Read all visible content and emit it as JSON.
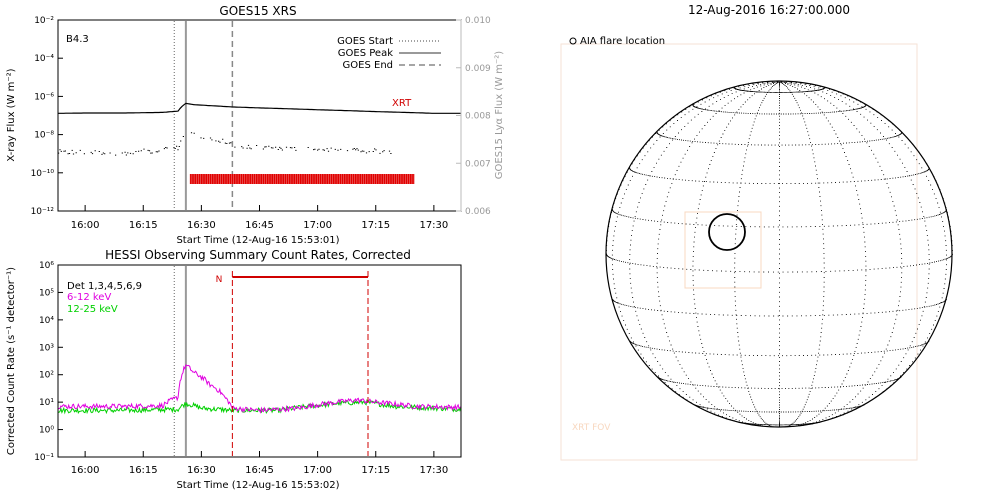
{
  "chart_data": [
    {
      "type": "line",
      "title": "GOES15 XRS",
      "xlabel": "Start Time (12-Aug-16 15:53:01)",
      "ylabel": "X-ray Flux (W m⁻²)",
      "y2label": "GOES15 Lyα Flux (W m⁻²)",
      "y_scale": "log",
      "ylim": [
        "1e-12",
        "1e-2"
      ],
      "y_ticks": [
        "10⁻¹²",
        "10⁻¹⁰",
        "10⁻⁸",
        "10⁻⁶",
        "10⁻⁴",
        "10⁻²"
      ],
      "y2_ticks": [
        "0.006",
        "0.007",
        "0.008",
        "0.009",
        "0.010"
      ],
      "x_ticks": [
        "16:00",
        "16:15",
        "16:30",
        "16:45",
        "17:00",
        "17:15",
        "17:30"
      ],
      "class_label": "B4.3",
      "xrt_label": "XRT",
      "legend": [
        {
          "label": "GOES Start",
          "style": "dotted"
        },
        {
          "label": "GOES Peak",
          "style": "solid"
        },
        {
          "label": "GOES End",
          "style": "dashed"
        }
      ],
      "goes_start": "16:23",
      "goes_peak": "16:26",
      "goes_end": "16:38",
      "series": [
        {
          "key": "long",
          "x": [
            "15:53",
            "16:00",
            "16:10",
            "16:20",
            "16:24",
            "16:26",
            "16:28",
            "16:32",
            "16:38",
            "16:45",
            "17:00",
            "17:15",
            "17:30",
            "17:37"
          ],
          "values": [
            "1.3e-7",
            "1.35e-7",
            "1.35e-7",
            "1.45e-7",
            "1.7e-7",
            "4.3e-7",
            "3.7e-7",
            "3.3e-7",
            "2.8e-7",
            "2.5e-7",
            "2.0e-7",
            "1.6e-7",
            "1.3e-7",
            "1.3e-7"
          ]
        },
        {
          "key": "short",
          "x": [
            "15:53",
            "16:00",
            "16:10",
            "16:20",
            "16:24",
            "16:26",
            "16:30",
            "16:35",
            "16:40",
            "16:45",
            "17:00",
            "17:10",
            "17:20",
            "17:37"
          ],
          "values": [
            "1.2e-9",
            "1.2e-9",
            "1.1e-9",
            "1.5e-9",
            "2e-9",
            "1.3e-8",
            "7e-9",
            "4.5e-9",
            "2.2e-9",
            "2.0e-9",
            "1.6e-9",
            "1.4e-9",
            "1.3e-9",
            "1.3e-9"
          ]
        }
      ],
      "xrt_coverage": [
        "16:27",
        "17:25"
      ]
    },
    {
      "type": "line",
      "title": "HESSI Observing Summary Count Rates, Corrected",
      "xlabel": "Start Time (12-Aug-16 15:53:02)",
      "ylabel": "Corrected Count Rate (s⁻¹ detector⁻¹)",
      "y_scale": "log",
      "ylim": [
        "1e-1",
        "1e6"
      ],
      "y_ticks": [
        "10⁻¹",
        "10⁰",
        "10¹",
        "10²",
        "10³",
        "10⁴",
        "10⁵",
        "10⁶"
      ],
      "x_ticks": [
        "16:00",
        "16:15",
        "16:30",
        "16:45",
        "17:00",
        "17:15",
        "17:30"
      ],
      "detectors_label": "Det 1,3,4,5,6,9",
      "night_label": "N",
      "night_interval": [
        "16:38",
        "17:13"
      ],
      "goes_start": "16:23",
      "goes_peak": "16:26",
      "series": [
        {
          "name": "6-12 keV",
          "color": "#e000e0",
          "x": [
            "15:53",
            "16:10",
            "16:20",
            "16:24",
            "16:25",
            "16:26",
            "16:28",
            "16:32",
            "16:36",
            "16:38",
            "16:45",
            "16:55",
            "17:05",
            "17:10",
            "17:15",
            "17:25",
            "17:37"
          ],
          "values": [
            "7",
            "7",
            "7.5",
            "15",
            "100",
            "220",
            "120",
            "45",
            "15",
            "6",
            "5",
            "6",
            "10",
            "12",
            "10",
            "7",
            "6.5"
          ]
        },
        {
          "name": "12-25 keV",
          "color": "#00d000",
          "x": [
            "15:53",
            "16:10",
            "16:24",
            "16:26",
            "16:30",
            "16:38",
            "16:50",
            "17:05",
            "17:12",
            "17:20",
            "17:37"
          ],
          "values": [
            "5",
            "5",
            "5.5",
            "9",
            "6",
            "5",
            "5",
            "9",
            "10",
            "7",
            "5.5"
          ]
        }
      ]
    }
  ],
  "solar": {
    "title": "12-Aug-2016 16:27:00.000",
    "legend": "AIA flare location",
    "fov_label": "XRT FOV"
  }
}
